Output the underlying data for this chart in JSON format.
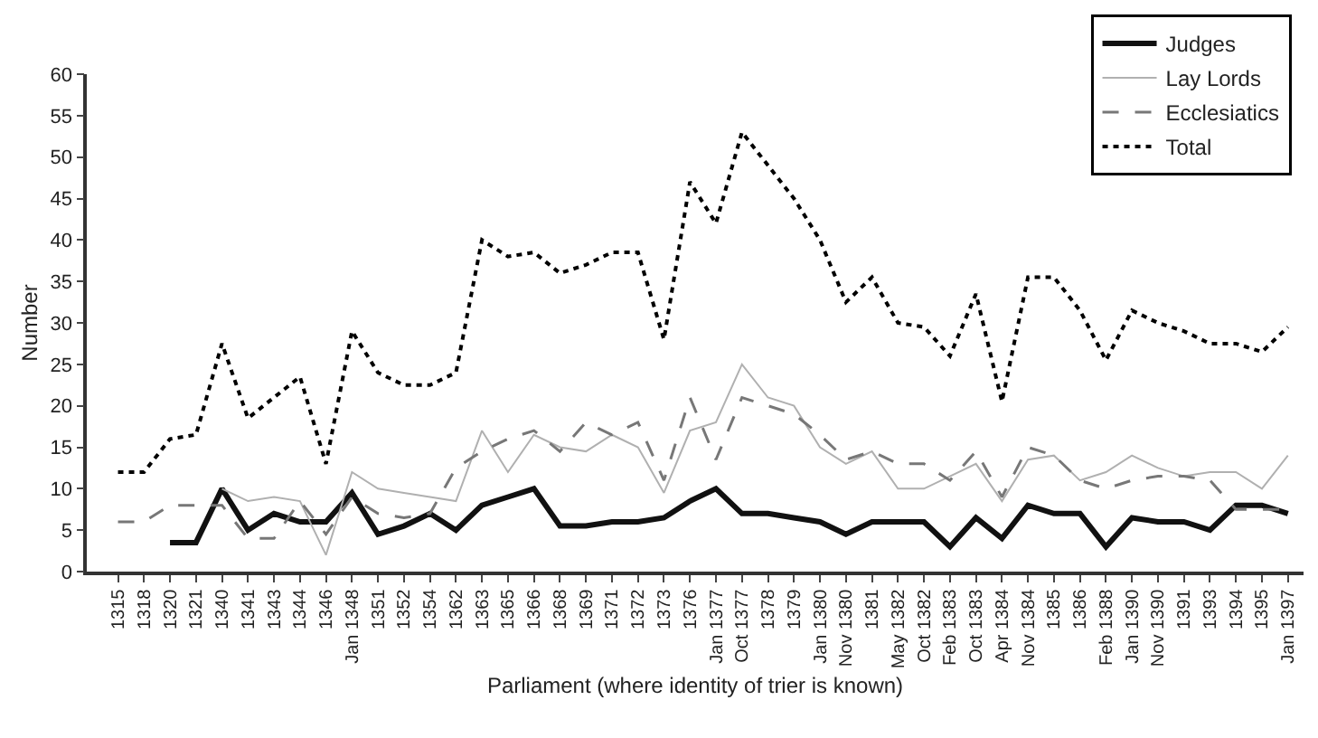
{
  "chart_data": {
    "type": "line",
    "xlabel": "Parliament (where identity of trier is known)",
    "ylabel": "Number",
    "categories": [
      "1315",
      "1318",
      "1320",
      "1321",
      "1340",
      "1341",
      "1343",
      "1344",
      "1346",
      "Jan 1348",
      "1351",
      "1352",
      "1354",
      "1362",
      "1363",
      "1365",
      "1366",
      "1368",
      "1369",
      "1371",
      "1372",
      "1373",
      "1376",
      "Jan 1377",
      "Oct 1377",
      "1378",
      "1379",
      "Jan 1380",
      "Nov 1380",
      "1381",
      "May 1382",
      "Oct 1382",
      "Feb 1383",
      "Oct 1383",
      "Apr 1384",
      "Nov 1384",
      "1385",
      "1386",
      "Feb 1388",
      "Jan 1390",
      "Nov 1390",
      "1391",
      "1393",
      "1394",
      "1395",
      "Jan 1397"
    ],
    "series": [
      {
        "name": "Judges",
        "color": "#111111",
        "line_style": "solid",
        "values": [
          null,
          null,
          3.5,
          3.5,
          10,
          5,
          7,
          6,
          6,
          9.5,
          4.5,
          5.5,
          7,
          5,
          8,
          9,
          10,
          5.5,
          5.5,
          6,
          6,
          6.5,
          8.5,
          10,
          7,
          7,
          6.5,
          6,
          4.5,
          6,
          6,
          6,
          3,
          6.5,
          4,
          8,
          7,
          7,
          3,
          6.5,
          6,
          6,
          5,
          8,
          8,
          7
        ]
      },
      {
        "name": "Lay Lords",
        "color": "#b0b0b0",
        "line_style": "solid",
        "values": [
          null,
          null,
          null,
          null,
          10,
          8.5,
          9,
          8.5,
          2,
          12,
          10,
          9.5,
          9,
          8.5,
          17,
          12,
          16.5,
          15,
          14.5,
          16.5,
          15,
          9.5,
          17,
          18,
          25,
          21,
          20,
          15,
          13,
          14.5,
          10,
          10,
          11.5,
          13,
          8.5,
          13.5,
          14,
          11,
          12,
          14,
          12.5,
          11.5,
          12,
          12,
          10,
          14
        ]
      },
      {
        "name": "Ecclesiatics",
        "color": "#777777",
        "line_style": "dashed",
        "values": [
          6,
          6,
          8,
          8,
          8,
          4,
          4,
          8.5,
          4.5,
          9,
          7,
          6.5,
          7,
          12.5,
          14.5,
          16,
          17,
          14.5,
          18,
          16.5,
          18,
          11,
          21,
          13.5,
          21,
          20,
          19,
          16.5,
          13.5,
          14.5,
          13,
          13,
          11,
          14.5,
          9,
          15,
          14,
          11,
          10,
          11,
          11.5,
          11.5,
          11,
          7.5,
          7.5,
          7.5
        ]
      },
      {
        "name": "Total",
        "color": "#000000",
        "line_style": "dotted",
        "values": [
          12,
          12,
          16,
          16.5,
          27.5,
          18.5,
          21,
          23.5,
          13,
          29,
          24,
          22.5,
          22.5,
          24,
          40,
          38,
          38.5,
          36,
          37,
          38.5,
          38.5,
          28,
          47,
          42,
          53,
          49,
          45,
          40,
          32.5,
          35.5,
          30,
          29.5,
          26,
          33.5,
          20.5,
          35.5,
          35.5,
          31.5,
          25.5,
          31.5,
          30,
          29,
          27.5,
          27.5,
          26.5,
          29.5
        ]
      }
    ],
    "ylim": [
      0,
      60
    ],
    "yticks": [
      0,
      5,
      10,
      15,
      20,
      25,
      30,
      35,
      40,
      45,
      50,
      55,
      60
    ],
    "legend": "top right",
    "marker": "none"
  }
}
